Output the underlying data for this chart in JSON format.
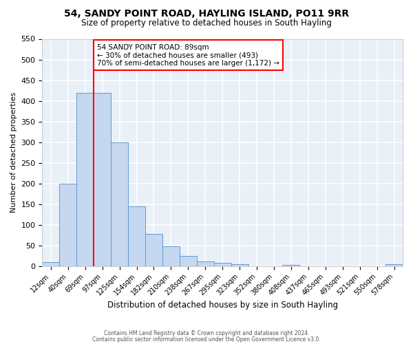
{
  "title": "54, SANDY POINT ROAD, HAYLING ISLAND, PO11 9RR",
  "subtitle": "Size of property relative to detached houses in South Hayling",
  "xlabel": "Distribution of detached houses by size in South Hayling",
  "ylabel": "Number of detached properties",
  "bin_labels": [
    "12sqm",
    "40sqm",
    "69sqm",
    "97sqm",
    "125sqm",
    "154sqm",
    "182sqm",
    "210sqm",
    "238sqm",
    "267sqm",
    "295sqm",
    "323sqm",
    "352sqm",
    "380sqm",
    "408sqm",
    "437sqm",
    "465sqm",
    "493sqm",
    "521sqm",
    "550sqm",
    "578sqm"
  ],
  "bar_heights": [
    10,
    200,
    420,
    420,
    300,
    145,
    78,
    48,
    25,
    12,
    8,
    5,
    0,
    0,
    3,
    0,
    0,
    0,
    0,
    0,
    4
  ],
  "bar_color": "#c5d8f0",
  "bar_edge_color": "#5b9bd5",
  "vline_color": "red",
  "vline_pos": 3.0,
  "annotation_title": "54 SANDY POINT ROAD: 89sqm",
  "annotation_line1": "← 30% of detached houses are smaller (493)",
  "annotation_line2": "70% of semi-detached houses are larger (1,172) →",
  "ylim": [
    0,
    550
  ],
  "yticks": [
    0,
    50,
    100,
    150,
    200,
    250,
    300,
    350,
    400,
    450,
    500,
    550
  ],
  "background_color": "#eaf0f8",
  "grid_color": "white",
  "footer_line1": "Contains HM Land Registry data © Crown copyright and database right 2024.",
  "footer_line2": "Contains public sector information licensed under the Open Government Licence v3.0."
}
